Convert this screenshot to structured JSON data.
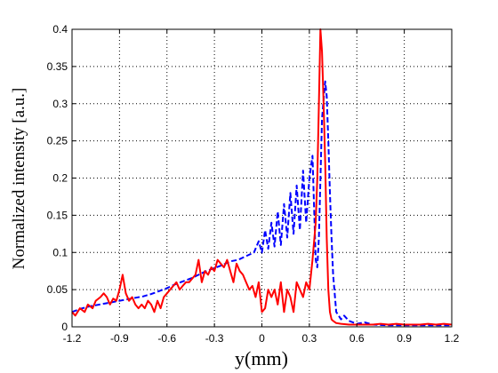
{
  "chart_data": {
    "type": "line",
    "title": "",
    "xlabel": "y(mm)",
    "ylabel": "Normalized intensity [a.u.]",
    "xlim": [
      -1.2,
      1.2
    ],
    "ylim": [
      0,
      0.4
    ],
    "xticks": [
      "-1.2",
      "-0.9",
      "-0.6",
      "-0.3",
      "0",
      "0.3",
      "0.6",
      "0.9",
      "1.2"
    ],
    "yticks": [
      "0",
      "0.05",
      "0.1",
      "0.15",
      "0.2",
      "0.25",
      "0.3",
      "0.35",
      "0.4"
    ],
    "grid": true,
    "legend": "none",
    "series": [
      {
        "style": "dashed",
        "color": "#0000ff",
        "x": [
          -1.2,
          -1.15,
          -1.1,
          -1.05,
          -1.0,
          -0.95,
          -0.9,
          -0.85,
          -0.8,
          -0.75,
          -0.7,
          -0.65,
          -0.6,
          -0.55,
          -0.5,
          -0.45,
          -0.4,
          -0.35,
          -0.3,
          -0.25,
          -0.2,
          -0.15,
          -0.1,
          -0.05,
          -0.02,
          0.0,
          0.02,
          0.04,
          0.06,
          0.08,
          0.1,
          0.12,
          0.14,
          0.16,
          0.18,
          0.2,
          0.22,
          0.24,
          0.26,
          0.28,
          0.3,
          0.32,
          0.34,
          0.35,
          0.36,
          0.38,
          0.4,
          0.41,
          0.42,
          0.43,
          0.44,
          0.45,
          0.47,
          0.5,
          0.52,
          0.55,
          0.6,
          0.65,
          0.7,
          0.8,
          0.9,
          1.0,
          1.1,
          1.2
        ],
        "y": [
          0.02,
          0.024,
          0.027,
          0.029,
          0.031,
          0.033,
          0.035,
          0.037,
          0.039,
          0.041,
          0.044,
          0.048,
          0.052,
          0.057,
          0.061,
          0.065,
          0.07,
          0.075,
          0.079,
          0.083,
          0.088,
          0.09,
          0.095,
          0.1,
          0.115,
          0.1,
          0.13,
          0.105,
          0.14,
          0.108,
          0.155,
          0.11,
          0.165,
          0.12,
          0.18,
          0.125,
          0.19,
          0.13,
          0.21,
          0.14,
          0.2,
          0.23,
          0.09,
          0.08,
          0.12,
          0.28,
          0.33,
          0.31,
          0.25,
          0.18,
          0.12,
          0.07,
          0.02,
          0.01,
          0.015,
          0.008,
          0.004,
          0.006,
          0.003,
          0.002,
          0.002,
          0.002,
          0.002,
          0.002
        ]
      },
      {
        "style": "solid",
        "color": "#ff0000",
        "x": [
          -1.2,
          -1.18,
          -1.15,
          -1.12,
          -1.1,
          -1.07,
          -1.05,
          -1.02,
          -1.0,
          -0.98,
          -0.96,
          -0.94,
          -0.92,
          -0.9,
          -0.88,
          -0.86,
          -0.84,
          -0.82,
          -0.8,
          -0.78,
          -0.76,
          -0.74,
          -0.72,
          -0.7,
          -0.68,
          -0.66,
          -0.64,
          -0.62,
          -0.6,
          -0.58,
          -0.56,
          -0.54,
          -0.52,
          -0.5,
          -0.48,
          -0.46,
          -0.44,
          -0.42,
          -0.4,
          -0.38,
          -0.36,
          -0.34,
          -0.32,
          -0.3,
          -0.28,
          -0.26,
          -0.24,
          -0.22,
          -0.2,
          -0.18,
          -0.16,
          -0.14,
          -0.12,
          -0.1,
          -0.08,
          -0.06,
          -0.04,
          -0.02,
          0.0,
          0.02,
          0.04,
          0.06,
          0.08,
          0.1,
          0.12,
          0.14,
          0.16,
          0.18,
          0.2,
          0.22,
          0.24,
          0.26,
          0.28,
          0.3,
          0.32,
          0.34,
          0.35,
          0.36,
          0.37,
          0.38,
          0.39,
          0.4,
          0.41,
          0.42,
          0.43,
          0.44,
          0.45,
          0.47,
          0.5,
          0.55,
          0.6,
          0.65,
          0.7,
          0.75,
          0.8,
          0.85,
          0.9,
          0.95,
          1.0,
          1.05,
          1.1,
          1.15,
          1.2
        ],
        "y": [
          0.02,
          0.015,
          0.025,
          0.02,
          0.03,
          0.025,
          0.035,
          0.04,
          0.045,
          0.04,
          0.03,
          0.038,
          0.035,
          0.05,
          0.07,
          0.045,
          0.035,
          0.04,
          0.03,
          0.025,
          0.03,
          0.025,
          0.035,
          0.03,
          0.02,
          0.035,
          0.025,
          0.04,
          0.045,
          0.05,
          0.055,
          0.06,
          0.05,
          0.055,
          0.06,
          0.06,
          0.065,
          0.07,
          0.09,
          0.06,
          0.075,
          0.07,
          0.08,
          0.075,
          0.09,
          0.085,
          0.08,
          0.09,
          0.075,
          0.06,
          0.085,
          0.075,
          0.07,
          0.06,
          0.05,
          0.055,
          0.04,
          0.06,
          0.02,
          0.025,
          0.05,
          0.04,
          0.05,
          0.03,
          0.06,
          0.02,
          0.05,
          0.04,
          0.02,
          0.06,
          0.05,
          0.04,
          0.06,
          0.05,
          0.09,
          0.14,
          0.2,
          0.3,
          0.4,
          0.37,
          0.3,
          0.22,
          0.12,
          0.05,
          0.02,
          0.01,
          0.008,
          0.005,
          0.004,
          0.003,
          0.003,
          0.003,
          0.003,
          0.004,
          0.003,
          0.004,
          0.003,
          0.003,
          0.003,
          0.004,
          0.003,
          0.004,
          0.003
        ]
      }
    ]
  }
}
